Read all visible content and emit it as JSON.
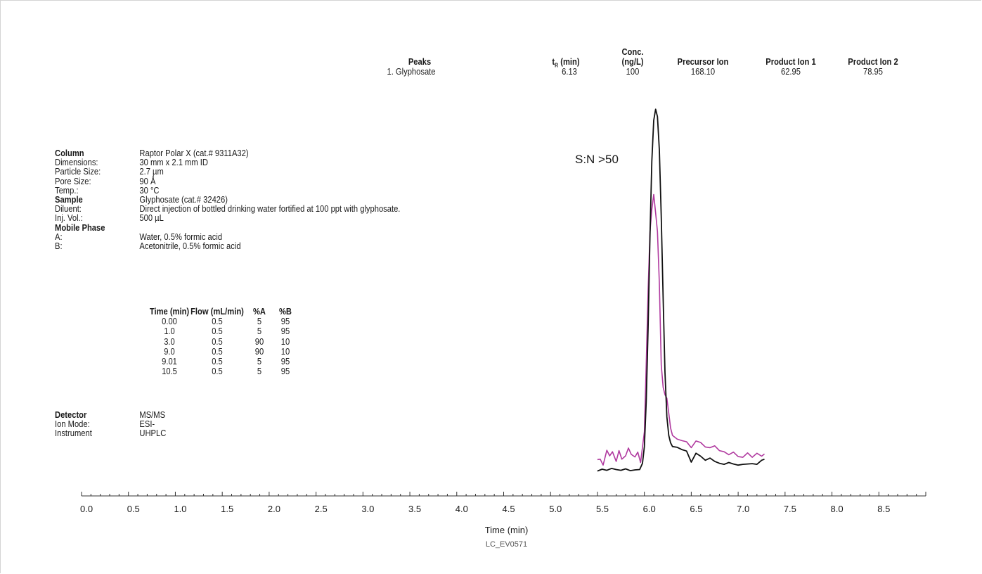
{
  "peaks_table": {
    "headers": {
      "peaks": "Peaks",
      "tr_main": "t",
      "tr_sub": "R",
      "tr_unit": " (min)",
      "conc_line1": "Conc.",
      "conc_line2": "(ng/L)",
      "precursor": "Precursor Ion",
      "product1": "Product Ion 1",
      "product2": "Product Ion 2"
    },
    "rows": [
      {
        "peak": "1. Glyphosate",
        "tr": "6.13",
        "conc": "100",
        "precursor": "168.10",
        "product1": "62.95",
        "product2": "78.95"
      }
    ]
  },
  "conditions": [
    {
      "label": "Column",
      "value": "Raptor Polar X (cat.# 9311A32)",
      "bold": true
    },
    {
      "label": "Dimensions:",
      "value": "30 mm x 2.1 mm ID",
      "bold": false
    },
    {
      "label": "Particle Size:",
      "value": "2.7 µm",
      "bold": false
    },
    {
      "label": "Pore Size:",
      "value": "90 Å",
      "bold": false
    },
    {
      "label": "Temp.:",
      "value": "30 °C",
      "bold": false
    },
    {
      "label": "Sample",
      "value": "Glyphosate (cat.# 32426)",
      "bold": true
    },
    {
      "label": "Diluent:",
      "value": "Direct injection of bottled drinking water fortified at 100 ppt with glyphosate.",
      "bold": false
    },
    {
      "label": "Inj. Vol.:",
      "value": "500 µL",
      "bold": false
    },
    {
      "label": "Mobile Phase",
      "value": "",
      "bold": true
    },
    {
      "label": "A:",
      "value": "Water, 0.5% formic acid",
      "bold": false
    },
    {
      "label": "B:",
      "value": "Acetonitrile, 0.5% formic acid",
      "bold": false
    }
  ],
  "gradient": {
    "headers": [
      "Time (min)",
      "Flow (mL/min)",
      "%A",
      "%B"
    ],
    "rows": [
      [
        "0.00",
        "0.5",
        "5",
        "95"
      ],
      [
        "1.0",
        "0.5",
        "5",
        "95"
      ],
      [
        "3.0",
        "0.5",
        "90",
        "10"
      ],
      [
        "9.0",
        "0.5",
        "90",
        "10"
      ],
      [
        "9.01",
        "0.5",
        "5",
        "95"
      ],
      [
        "10.5",
        "0.5",
        "5",
        "95"
      ]
    ]
  },
  "detector": [
    {
      "label": "Detector",
      "value": "MS/MS",
      "bold": true
    },
    {
      "label": "Ion Mode:",
      "value": "ESI-",
      "bold": false
    },
    {
      "label": "Instrument",
      "value": "UHPLC",
      "bold": false
    }
  ],
  "chart_data": {
    "type": "line",
    "xlabel": "Time (min)",
    "ylabel": "",
    "xlim": [
      0.0,
      9.0
    ],
    "ylim": [
      0,
      100
    ],
    "xticks": [
      "0.0",
      "0.5",
      "1.0",
      "1.5",
      "2.0",
      "2.5",
      "3.0",
      "3.5",
      "4.0",
      "4.5",
      "5.0",
      "5.5",
      "6.0",
      "6.5",
      "7.0",
      "7.5",
      "8.0",
      "8.5"
    ],
    "annotation": "S:N >50",
    "code": "LC_EV0571",
    "colors": {
      "black_trace": "#111111",
      "magenta_trace": "#b0399f",
      "axis": "#333333"
    },
    "series": [
      {
        "color": "#111111",
        "x": [
          5.5,
          5.55,
          5.6,
          5.65,
          5.7,
          5.75,
          5.8,
          5.85,
          5.9,
          5.95,
          5.98,
          6.0,
          6.02,
          6.04,
          6.06,
          6.08,
          6.1,
          6.12,
          6.14,
          6.16,
          6.18,
          6.2,
          6.22,
          6.24,
          6.26,
          6.28,
          6.3,
          6.35,
          6.4,
          6.45,
          6.5,
          6.55,
          6.6,
          6.65,
          6.7,
          6.75,
          6.8,
          6.85,
          6.9,
          6.95,
          7.0,
          7.05,
          7.1,
          7.15,
          7.2,
          7.25,
          7.28
        ],
        "y": [
          1.4,
          1.9,
          1.6,
          2.1,
          1.8,
          1.6,
          2.0,
          1.5,
          1.7,
          1.8,
          3.5,
          8,
          20,
          40,
          65,
          85,
          96,
          99,
          97,
          88,
          70,
          48,
          28,
          16,
          11,
          9,
          8,
          7.8,
          7.2,
          6.8,
          3.8,
          6.2,
          5.4,
          4.3,
          4.9,
          4.0,
          3.5,
          3.2,
          3.7,
          3.3,
          3.0,
          3.2,
          3.3,
          3.4,
          3.2,
          4.3,
          4.6
        ]
      },
      {
        "color": "#b0399f",
        "x": [
          5.5,
          5.53,
          5.56,
          5.6,
          5.63,
          5.66,
          5.7,
          5.73,
          5.76,
          5.8,
          5.83,
          5.86,
          5.9,
          5.93,
          5.96,
          6.0,
          6.02,
          6.04,
          6.06,
          6.08,
          6.1,
          6.12,
          6.14,
          6.16,
          6.18,
          6.2,
          6.22,
          6.24,
          6.26,
          6.28,
          6.3,
          6.35,
          6.4,
          6.45,
          6.5,
          6.55,
          6.6,
          6.65,
          6.7,
          6.75,
          6.8,
          6.85,
          6.9,
          6.95,
          7.0,
          7.05,
          7.1,
          7.15,
          7.2,
          7.25,
          7.28
        ],
        "y": [
          4.5,
          4.6,
          3.0,
          7.0,
          5.5,
          6.6,
          4.0,
          6.9,
          4.6,
          5.5,
          7.6,
          5.9,
          5.2,
          6.5,
          3.7,
          12,
          30,
          50,
          66,
          72,
          76,
          71,
          66,
          52,
          30,
          24,
          22,
          21,
          17,
          13,
          11,
          10,
          9.6,
          9.3,
          7.7,
          9.5,
          9.1,
          7.9,
          7.7,
          8.2,
          6.9,
          6.6,
          5.8,
          6.5,
          5.3,
          5.1,
          6.3,
          5.1,
          6.2,
          5.4,
          6.0
        ]
      }
    ]
  }
}
